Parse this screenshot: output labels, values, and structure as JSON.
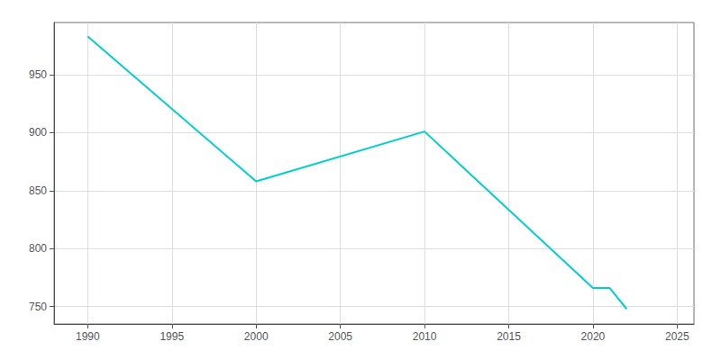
{
  "chart_data": {
    "type": "line",
    "x": [
      1990,
      2000,
      2010,
      2020,
      2021,
      2022
    ],
    "values": [
      983,
      858,
      901,
      766,
      766,
      748
    ],
    "color": "#00CED1",
    "xlim": [
      1988,
      2026
    ],
    "xticks": [
      1990,
      1995,
      2000,
      2005,
      2010,
      2015,
      2020,
      2025
    ],
    "ylim": [
      735,
      995
    ],
    "yticks": [
      750,
      800,
      850,
      900,
      950
    ],
    "grid": true
  }
}
